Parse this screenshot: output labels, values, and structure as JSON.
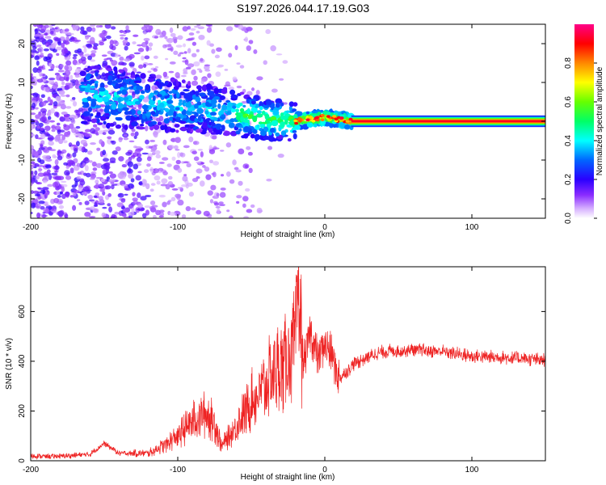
{
  "title": "S197.2026.044.17.19.G03",
  "chart_data": [
    {
      "type": "heatmap",
      "xlabel": "Height of straight line (km)",
      "ylabel": "Frequency (Hz)",
      "xlim": [
        -200,
        150
      ],
      "ylim": [
        -25,
        25
      ],
      "x_ticks": [
        -200,
        -100,
        0,
        100
      ],
      "y_ticks": [
        -20,
        -10,
        0,
        10,
        20
      ],
      "colorbar": {
        "label": "Normalized spectral amplitude",
        "range": [
          0,
          1
        ],
        "ticks": [
          0.0,
          0.2,
          0.4,
          0.6,
          0.8
        ],
        "colors": [
          "#ffffff",
          "#cc88ff",
          "#6600ff",
          "#0000ff",
          "#00ffff",
          "#00ff00",
          "#ffff00",
          "#ff6600",
          "#ff0000",
          "#ff0066"
        ]
      },
      "ridge": {
        "description_points_x": [
          -160,
          -140,
          -120,
          -100,
          -80,
          -60,
          -40,
          -20,
          0,
          20,
          150
        ],
        "description_points_y": [
          7,
          6,
          5,
          4,
          3,
          2,
          0.5,
          0,
          1,
          0,
          0
        ]
      }
    },
    {
      "type": "line",
      "xlabel": "Height of straight line (km)",
      "ylabel": "SNR (10 * v/v)",
      "xlim": [
        -200,
        150
      ],
      "ylim": [
        0,
        780
      ],
      "x_ticks": [
        -200,
        -100,
        0,
        100
      ],
      "y_ticks": [
        0,
        200,
        400,
        600
      ],
      "series": [
        {
          "name": "SNR",
          "color": "#ee2222",
          "x": [
            -200,
            -180,
            -160,
            -150,
            -140,
            -120,
            -110,
            -100,
            -90,
            -80,
            -75,
            -70,
            -60,
            -50,
            -40,
            -35,
            -30,
            -25,
            -20,
            -18,
            -15,
            -10,
            -5,
            0,
            5,
            10,
            20,
            30,
            40,
            60,
            80,
            100,
            120,
            150
          ],
          "y": [
            18,
            18,
            25,
            70,
            30,
            30,
            60,
            100,
            160,
            190,
            150,
            60,
            140,
            240,
            300,
            360,
            380,
            420,
            450,
            750,
            380,
            520,
            420,
            470,
            420,
            330,
            390,
            420,
            440,
            445,
            440,
            420,
            415,
            405
          ]
        }
      ]
    }
  ]
}
